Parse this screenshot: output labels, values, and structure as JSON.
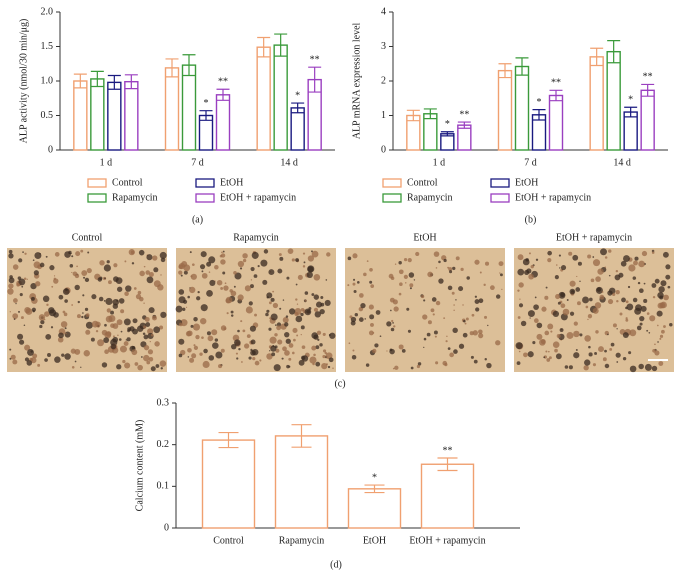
{
  "chart_data": [
    {
      "type": "bar",
      "ylabel": "ALP activity (nmol/30 min/μg)",
      "caption": "(a)",
      "categories": [
        "1 d",
        "7 d",
        "14 d"
      ],
      "ylim": [
        0,
        2
      ],
      "yticks": [
        0,
        0.5,
        {
          "value": 1,
          "label": "1.0"
        },
        1.5,
        {
          "value": 2,
          "label": "2.0"
        }
      ],
      "series": [
        {
          "name": "Control",
          "color": "#f0a070",
          "values": [
            1.0,
            1.19,
            1.49
          ],
          "errors": [
            0.1,
            0.13,
            0.14
          ],
          "markers": [
            null,
            null,
            null
          ]
        },
        {
          "name": "Rapamycin",
          "color": "#3a9a3a",
          "values": [
            1.03,
            1.23,
            1.52
          ],
          "errors": [
            0.11,
            0.15,
            0.16
          ],
          "markers": [
            null,
            null,
            null
          ]
        },
        {
          "name": "EtOH",
          "color": "#1a1a80",
          "values": [
            0.98,
            0.5,
            0.61
          ],
          "errors": [
            0.1,
            0.07,
            0.07
          ],
          "markers": [
            null,
            "*",
            "*"
          ]
        },
        {
          "name": "EtOH + rapamycin",
          "color": "#9a3fc0",
          "values": [
            0.99,
            0.8,
            1.02
          ],
          "errors": [
            0.1,
            0.08,
            0.18
          ],
          "markers": [
            null,
            "**",
            "**"
          ]
        }
      ]
    },
    {
      "type": "bar",
      "ylabel": "ALP mRNA expression level",
      "caption": "(b)",
      "categories": [
        "1 d",
        "7 d",
        "14 d"
      ],
      "ylim": [
        0,
        4
      ],
      "yticks": [
        0,
        1,
        2,
        3,
        4
      ],
      "series": [
        {
          "name": "Control",
          "color": "#f0a070",
          "values": [
            1.0,
            2.3,
            2.7
          ],
          "errors": [
            0.15,
            0.2,
            0.25
          ],
          "markers": [
            null,
            null,
            null
          ]
        },
        {
          "name": "Rapamycin",
          "color": "#3a9a3a",
          "values": [
            1.05,
            2.42,
            2.85
          ],
          "errors": [
            0.14,
            0.25,
            0.32
          ],
          "markers": [
            null,
            null,
            null
          ]
        },
        {
          "name": "EtOH",
          "color": "#1a1a80",
          "values": [
            0.47,
            1.02,
            1.1
          ],
          "errors": [
            0.06,
            0.15,
            0.14
          ],
          "markers": [
            "*",
            "*",
            "*"
          ]
        },
        {
          "name": "EtOH + rapamycin",
          "color": "#9a3fc0",
          "values": [
            0.72,
            1.58,
            1.73
          ],
          "errors": [
            0.09,
            0.15,
            0.17
          ],
          "markers": [
            "**",
            "**",
            "**"
          ]
        }
      ]
    },
    {
      "type": "bar",
      "ylabel": "Calcium content (mM)",
      "caption": "(d)",
      "categories": [
        "Control",
        "Rapamycin",
        "EtOH",
        "EtOH + rapamycin"
      ],
      "ylim": [
        0,
        0.3
      ],
      "yticks": [
        0,
        0.1,
        0.2,
        0.3
      ],
      "series": [
        {
          "color": "#f0a070",
          "values": [
            0.211,
            0.221,
            0.094,
            0.153
          ],
          "errors": [
            0.018,
            0.027,
            0.009,
            0.015
          ],
          "markers": [
            null,
            null,
            "*",
            "**"
          ]
        }
      ]
    }
  ],
  "image_panels": {
    "labels": [
      "Control",
      "Rapamycin",
      "EtOH",
      "EtOH + rapamycin"
    ],
    "caption": "(c)"
  }
}
